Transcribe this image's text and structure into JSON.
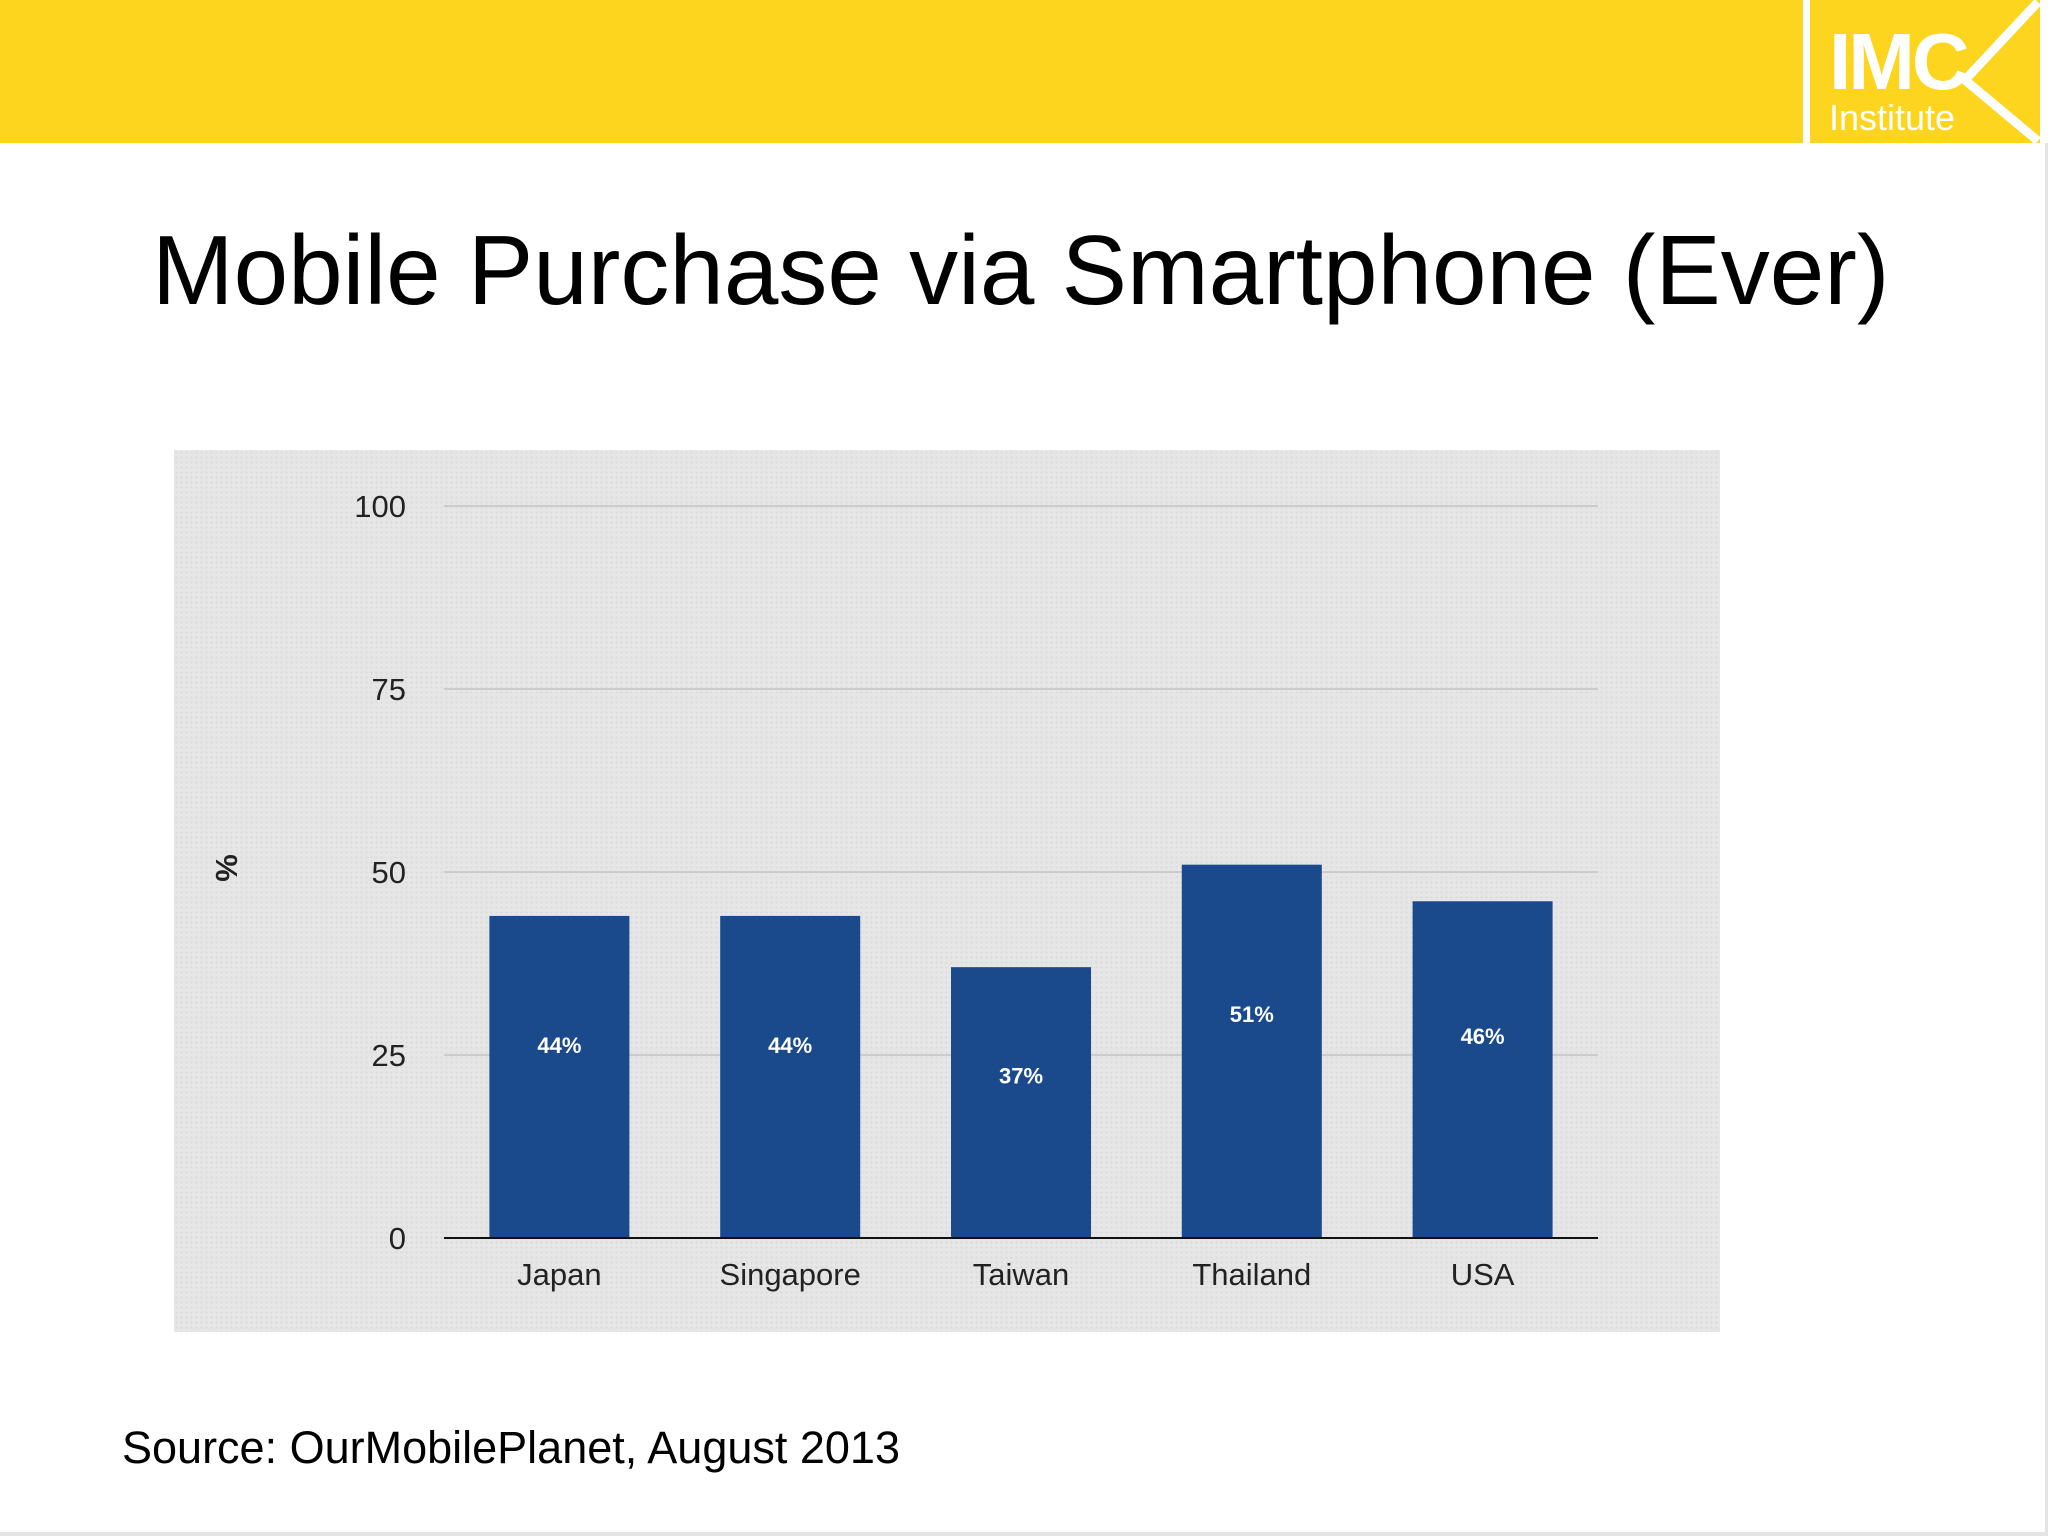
{
  "slide": {
    "title": "Mobile Purchase via Smartphone (Ever)",
    "source": "Source: OurMobilePlanet, August 2013"
  },
  "logo": {
    "line1": "IMC",
    "line2": "Institute"
  },
  "colors": {
    "header_bar": "#FDD41E",
    "bar": "#1A4A8C",
    "chart_background": "#e6e6e6",
    "gridline": "#c4c4c4"
  },
  "chart_data": {
    "type": "bar",
    "categories": [
      "Japan",
      "Singapore",
      "Taiwan",
      "Thailand",
      "USA"
    ],
    "values": [
      44,
      44,
      37,
      51,
      46
    ],
    "data_labels": [
      "44%",
      "44%",
      "37%",
      "51%",
      "46%"
    ],
    "ylabel": "%",
    "ylim": [
      0,
      100
    ],
    "yticks": [
      0,
      25,
      50,
      75,
      100
    ],
    "grid": true
  }
}
